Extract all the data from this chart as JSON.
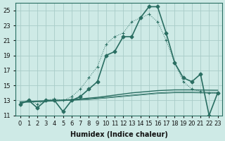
{
  "xlabel": "Humidex (Indice chaleur)",
  "x_values": [
    0,
    1,
    2,
    3,
    4,
    5,
    6,
    7,
    8,
    9,
    10,
    11,
    12,
    13,
    14,
    15,
    16,
    17,
    18,
    19,
    20,
    21,
    22,
    23
  ],
  "main_line_y": [
    12.5,
    13.0,
    12.0,
    13.0,
    13.0,
    11.5,
    13.0,
    13.5,
    14.5,
    15.5,
    19.0,
    19.5,
    21.5,
    21.5,
    24.0,
    25.5,
    25.5,
    22.0,
    18.0,
    16.0,
    15.5,
    16.5,
    11.0,
    14.0
  ],
  "dotted_line_y": [
    12.5,
    13.0,
    12.5,
    13.0,
    13.2,
    13.0,
    13.5,
    14.5,
    16.0,
    17.5,
    20.5,
    21.5,
    22.0,
    23.5,
    24.0,
    24.5,
    23.5,
    21.0,
    18.0,
    15.5,
    14.5,
    14.2,
    14.0,
    14.0
  ],
  "reg_line1_y": [
    12.8,
    12.85,
    12.9,
    12.95,
    13.0,
    13.05,
    13.1,
    13.2,
    13.3,
    13.4,
    13.55,
    13.7,
    13.85,
    14.0,
    14.1,
    14.2,
    14.3,
    14.35,
    14.4,
    14.4,
    14.4,
    14.38,
    14.36,
    14.35
  ],
  "reg_line2_y": [
    12.75,
    12.8,
    12.85,
    12.9,
    12.95,
    13.0,
    13.05,
    13.1,
    13.2,
    13.3,
    13.4,
    13.5,
    13.6,
    13.7,
    13.8,
    13.9,
    14.0,
    14.05,
    14.1,
    14.1,
    14.1,
    14.08,
    14.06,
    14.05
  ],
  "reg_line3_y": [
    12.7,
    12.75,
    12.8,
    12.85,
    12.9,
    12.95,
    13.0,
    13.05,
    13.1,
    13.2,
    13.3,
    13.4,
    13.5,
    13.6,
    13.7,
    13.8,
    13.9,
    13.95,
    14.0,
    14.0,
    14.0,
    13.98,
    13.96,
    13.95
  ],
  "line_color": "#2a6e62",
  "bg_color": "#ceeae6",
  "grid_color": "#a8ccc8",
  "ylim": [
    11,
    26
  ],
  "yticks": [
    11,
    13,
    15,
    17,
    19,
    21,
    23,
    25
  ],
  "xlim": [
    -0.5,
    23.5
  ]
}
